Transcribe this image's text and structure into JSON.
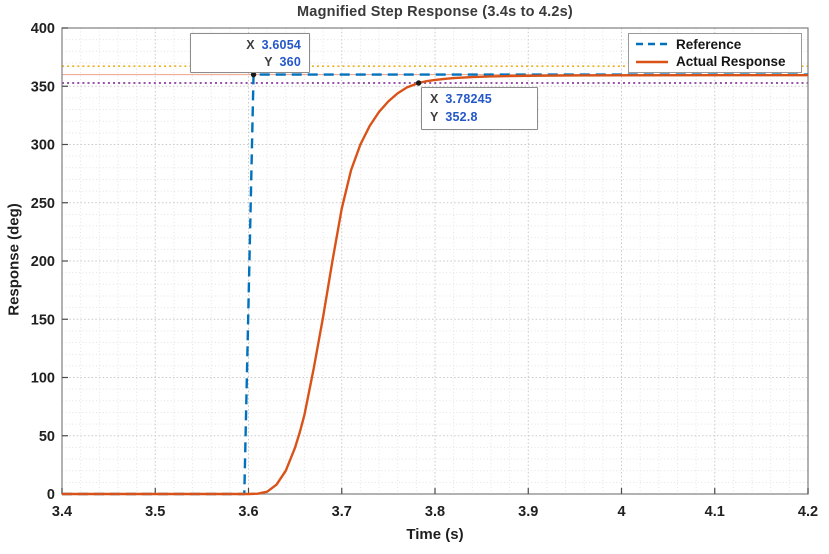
{
  "figure": {
    "title": "Magnified Step Response (3.4s to 4.2s)",
    "xlabel": "Time (s)",
    "ylabel": "Response (deg)"
  },
  "chart_data": {
    "type": "line",
    "title": "Magnified Step Response (3.4s to 4.2s)",
    "xlabel": "Time (s)",
    "ylabel": "Response (deg)",
    "xlim": [
      3.4,
      4.2
    ],
    "ylim": [
      0,
      400
    ],
    "grid": true,
    "minor_grid": {
      "x_step": 0.02,
      "y_step": 10
    },
    "x_ticks": {
      "values": [
        3.4,
        3.5,
        3.6,
        3.7,
        3.8,
        3.9,
        4,
        4.1,
        4.2
      ],
      "labels": [
        "3.4",
        "3.5",
        "3.6",
        "3.7",
        "3.8",
        "3.9",
        "4",
        "4.1",
        "4.2"
      ]
    },
    "y_ticks": {
      "values": [
        0,
        50,
        100,
        150,
        200,
        250,
        300,
        350,
        400
      ],
      "labels": [
        "0",
        "50",
        "100",
        "150",
        "200",
        "250",
        "300",
        "350",
        "400"
      ]
    },
    "series": [
      {
        "name": "Reference",
        "color": "#0072BD",
        "style": "dashed",
        "width": 2.4,
        "points": [
          [
            3.4,
            0
          ],
          [
            3.5955,
            0
          ],
          [
            3.6054,
            360
          ],
          [
            4.2,
            360
          ]
        ]
      },
      {
        "name": "Actual Response",
        "color": "#D95319",
        "style": "solid",
        "width": 2.4,
        "points": [
          [
            3.4,
            0
          ],
          [
            3.5,
            0
          ],
          [
            3.55,
            0
          ],
          [
            3.58,
            0
          ],
          [
            3.6,
            0
          ],
          [
            3.61,
            0.3
          ],
          [
            3.62,
            2
          ],
          [
            3.63,
            8
          ],
          [
            3.64,
            20
          ],
          [
            3.65,
            40
          ],
          [
            3.655,
            53
          ],
          [
            3.66,
            68
          ],
          [
            3.67,
            108
          ],
          [
            3.68,
            152
          ],
          [
            3.69,
            200
          ],
          [
            3.7,
            245
          ],
          [
            3.71,
            278
          ],
          [
            3.72,
            300
          ],
          [
            3.73,
            316
          ],
          [
            3.74,
            328
          ],
          [
            3.75,
            337
          ],
          [
            3.76,
            344
          ],
          [
            3.77,
            349
          ],
          [
            3.78245,
            352.8
          ],
          [
            3.79,
            354.2
          ],
          [
            3.8,
            355.4
          ],
          [
            3.81,
            356.3
          ],
          [
            3.82,
            357
          ],
          [
            3.84,
            357.9
          ],
          [
            3.86,
            358.4
          ],
          [
            3.88,
            358.8
          ],
          [
            3.9,
            359
          ],
          [
            3.95,
            359.3
          ],
          [
            4.0,
            359.4
          ],
          [
            4.1,
            359.5
          ],
          [
            4.2,
            359.5
          ]
        ]
      }
    ],
    "reference_lines": [
      {
        "name": "upper-settling-band",
        "y": 367.2,
        "color": "#EDB120",
        "style": "dotted",
        "width": 1.6
      },
      {
        "name": "target-value",
        "y": 360,
        "color": "#F0AE96",
        "style": "solid",
        "width": 1.1
      },
      {
        "name": "lower-settling-band",
        "y": 352.8,
        "color": "#8B3A9E",
        "style": "dotted",
        "width": 1.8
      }
    ],
    "legend": {
      "position": "northeast",
      "items": [
        {
          "label": "Reference",
          "color": "#0072BD",
          "style": "dashed"
        },
        {
          "label": "Actual Response",
          "color": "#D95319",
          "style": "solid"
        }
      ]
    },
    "datatips": [
      {
        "x_label": "X",
        "x_value": "3.6054",
        "y_label": "Y",
        "y_value": "360",
        "x": 3.6054,
        "y": 360,
        "marker_color": "#1a1a1a"
      },
      {
        "x_label": "X",
        "x_value": "3.78245",
        "y_label": "Y",
        "y_value": "352.8",
        "x": 3.78245,
        "y": 352.8,
        "marker_color": "#1a1a1a"
      }
    ],
    "axis_color": "#7f7f7f",
    "major_grid_color": "#c9c9c9",
    "minor_grid_color": "#e3e3e3",
    "tick_label_color": "#202020"
  }
}
